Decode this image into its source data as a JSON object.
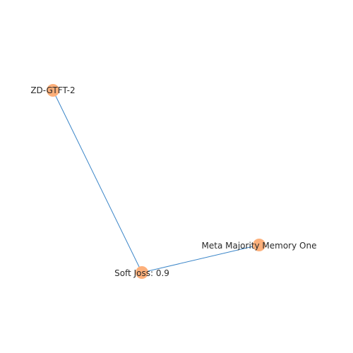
{
  "graph": {
    "edge_color": "#3a85c8",
    "node_color": "#fdb07b",
    "nodes": [
      {
        "id": "n1",
        "label": "ZD-GTFT-2"
      },
      {
        "id": "n2",
        "label": "Soft Joss: 0.9"
      },
      {
        "id": "n3",
        "label": "Meta Majority Memory One"
      }
    ],
    "edges": [
      {
        "source": "n1",
        "target": "n2"
      },
      {
        "source": "n2",
        "target": "n3"
      }
    ]
  }
}
